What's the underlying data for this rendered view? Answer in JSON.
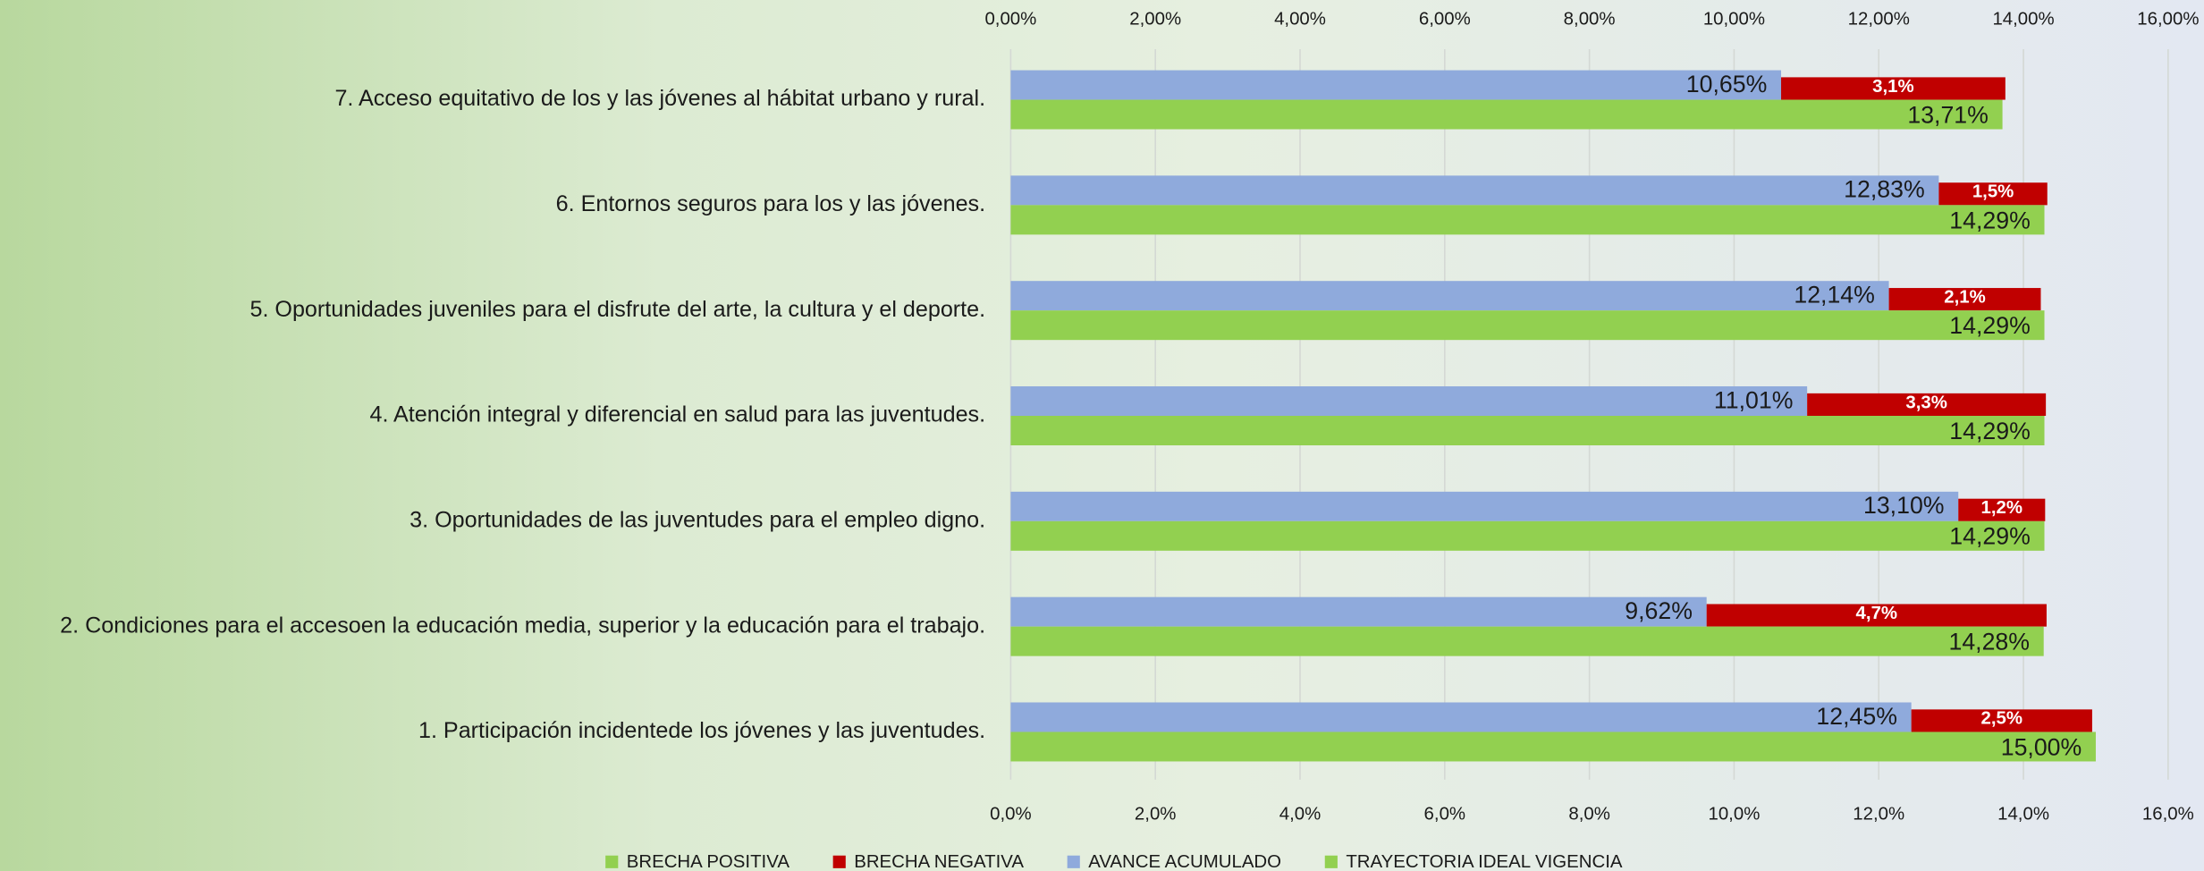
{
  "chart_data": {
    "type": "bar",
    "categories": [
      "7. Acceso equitativo de los y las jóvenes al hábitat urbano y rural.",
      "6. Entornos seguros para los y las jóvenes.",
      "5. Oportunidades juveniles para el disfrute del arte, la cultura y el deporte.",
      "4. Atención integral y diferencial en salud para las juventudes.",
      "3. Oportunidades de las juventudes para el empleo digno.",
      "2. Condiciones para el accesoen la educación media, superior y la educación para el trabajo.",
      "1. Participación incidentede los jóvenes y las juventudes."
    ],
    "series": [
      {
        "name": "BRECHA POSITIVA",
        "color": "#92d050",
        "values": [
          null,
          null,
          null,
          null,
          null,
          null,
          null
        ]
      },
      {
        "name": "BRECHA NEGATIVA",
        "color": "#c00000",
        "values": [
          3.1,
          1.5,
          2.1,
          3.3,
          1.2,
          4.7,
          2.5
        ],
        "value_labels": [
          "3,1%",
          "1,5%",
          "2,1%",
          "3,3%",
          "1,2%",
          "4,7%",
          "2,5%"
        ]
      },
      {
        "name": "AVANCE ACUMULADO",
        "color": "#8faadc",
        "values": [
          10.65,
          12.83,
          12.14,
          11.01,
          13.1,
          9.62,
          12.45
        ],
        "value_labels": [
          "10,65%",
          "12,83%",
          "12,14%",
          "11,01%",
          "13,10%",
          "9,62%",
          "12,45%"
        ]
      },
      {
        "name": "TRAYECTORIA IDEAL VIGENCIA",
        "color": "#92d050",
        "values": [
          13.71,
          14.29,
          14.29,
          14.29,
          14.29,
          14.28,
          15.0
        ],
        "value_labels": [
          "13,71%",
          "14,29%",
          "14,29%",
          "14,29%",
          "14,29%",
          "14,28%",
          "15,00%"
        ]
      }
    ],
    "xlim": [
      0,
      16
    ],
    "xticks": [
      {
        "value": 0,
        "label": "0,0%"
      },
      {
        "value": 2,
        "label": "2,0%"
      },
      {
        "value": 4,
        "label": "4,0%"
      },
      {
        "value": 6,
        "label": "6,0%"
      },
      {
        "value": 8,
        "label": "8,0%"
      },
      {
        "value": 10,
        "label": "10,0%"
      },
      {
        "value": 12,
        "label": "12,0%"
      },
      {
        "value": 14,
        "label": "14,0%"
      },
      {
        "value": 16,
        "label": "16,0%"
      }
    ],
    "x2ticks": [
      {
        "value": 0,
        "label": "0,00%"
      },
      {
        "value": 2,
        "label": "2,00%"
      },
      {
        "value": 4,
        "label": "4,00%"
      },
      {
        "value": 6,
        "label": "6,00%"
      },
      {
        "value": 8,
        "label": "8,00%"
      },
      {
        "value": 10,
        "label": "10,00%"
      },
      {
        "value": 12,
        "label": "12,00%"
      },
      {
        "value": 14,
        "label": "14,00%"
      },
      {
        "value": 16,
        "label": "16,00%"
      }
    ],
    "grid": true,
    "legend": "bottom"
  }
}
